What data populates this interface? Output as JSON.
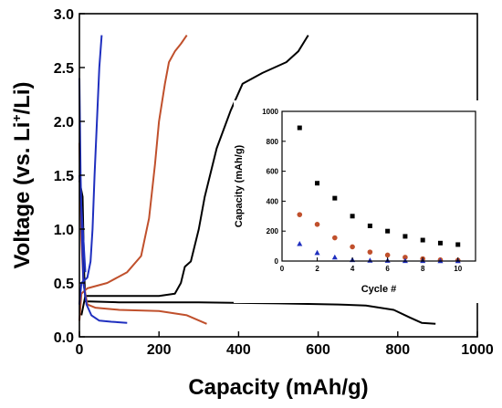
{
  "chart_data": [
    {
      "type": "line",
      "xlabel": "Capacity (mAh/g)",
      "ylabel_parts": [
        "Voltage (vs. Li",
        "+",
        "/Li)"
      ],
      "xlim": [
        0,
        1000
      ],
      "ylim": [
        0,
        3.0
      ],
      "x_ticks": [
        "0",
        "200",
        "400",
        "600",
        "800",
        "1000"
      ],
      "y_ticks": [
        "0.0",
        "0.5",
        "1.0",
        "1.5",
        "2.0",
        "2.5",
        "3.0"
      ],
      "grid": false,
      "series": [
        {
          "color": "#000000",
          "curves": [
            [
              [
                0,
                1.45
              ],
              [
                8,
                1.3
              ],
              [
                12,
                0.6
              ],
              [
                15,
                0.33
              ],
              [
                100,
                0.32
              ],
              [
                300,
                0.32
              ],
              [
                500,
                0.31
              ],
              [
                650,
                0.3
              ],
              [
                720,
                0.29
              ],
              [
                790,
                0.25
              ],
              [
                830,
                0.18
              ],
              [
                860,
                0.13
              ],
              [
                895,
                0.12
              ]
            ],
            [
              [
                5,
                0.2
              ],
              [
                15,
                0.38
              ],
              [
                100,
                0.38
              ],
              [
                200,
                0.38
              ],
              [
                240,
                0.4
              ],
              [
                255,
                0.5
              ],
              [
                265,
                0.65
              ],
              [
                280,
                0.7
              ],
              [
                300,
                1.0
              ],
              [
                315,
                1.3
              ],
              [
                345,
                1.75
              ],
              [
                380,
                2.1
              ],
              [
                410,
                2.35
              ],
              [
                460,
                2.45
              ],
              [
                520,
                2.55
              ],
              [
                550,
                2.65
              ],
              [
                575,
                2.8
              ]
            ]
          ]
        },
        {
          "color": "#c0502c",
          "curves": [
            [
              [
                0,
                1.8
              ],
              [
                5,
                0.9
              ],
              [
                10,
                0.5
              ],
              [
                20,
                0.3
              ],
              [
                40,
                0.27
              ],
              [
                100,
                0.25
              ],
              [
                200,
                0.24
              ],
              [
                270,
                0.2
              ],
              [
                320,
                0.12
              ]
            ],
            [
              [
                0,
                0.15
              ],
              [
                5,
                0.4
              ],
              [
                20,
                0.45
              ],
              [
                70,
                0.5
              ],
              [
                120,
                0.6
              ],
              [
                155,
                0.75
              ],
              [
                175,
                1.1
              ],
              [
                190,
                1.6
              ],
              [
                200,
                2.0
              ],
              [
                215,
                2.35
              ],
              [
                225,
                2.55
              ],
              [
                240,
                2.65
              ],
              [
                255,
                2.72
              ],
              [
                270,
                2.8
              ]
            ]
          ]
        },
        {
          "color": "#1f2fbf",
          "curves": [
            [
              [
                0,
                2.4
              ],
              [
                3,
                1.5
              ],
              [
                6,
                1.0
              ],
              [
                10,
                0.5
              ],
              [
                18,
                0.3
              ],
              [
                30,
                0.2
              ],
              [
                50,
                0.15
              ],
              [
                80,
                0.14
              ],
              [
                120,
                0.13
              ]
            ],
            [
              [
                0,
                0.3
              ],
              [
                5,
                0.5
              ],
              [
                20,
                0.55
              ],
              [
                28,
                0.7
              ],
              [
                33,
                1.0
              ],
              [
                38,
                1.5
              ],
              [
                44,
                2.0
              ],
              [
                50,
                2.5
              ],
              [
                56,
                2.8
              ]
            ],
            [
              [
                0,
                1.5
              ],
              [
                5,
                1.2
              ],
              [
                10,
                0.9
              ],
              [
                15,
                0.6
              ]
            ]
          ]
        }
      ]
    },
    {
      "type": "scatter",
      "xlabel": "Cycle #",
      "ylabel": "Capacity (mAh/g)",
      "xlim": [
        0,
        11
      ],
      "ylim": [
        0,
        1000
      ],
      "x_ticks": [
        "0",
        "2",
        "4",
        "6",
        "8",
        "10"
      ],
      "y_ticks": [
        "0",
        "200",
        "400",
        "600",
        "800",
        "1000"
      ],
      "series": [
        {
          "color": "#000000",
          "marker": "square",
          "x": [
            1,
            2,
            3,
            4,
            5,
            6,
            7,
            8,
            9,
            10
          ],
          "y": [
            890,
            520,
            420,
            300,
            235,
            200,
            165,
            140,
            120,
            110
          ]
        },
        {
          "color": "#c0502c",
          "marker": "circle",
          "x": [
            1,
            2,
            3,
            4,
            5,
            6,
            7,
            8,
            9,
            10
          ],
          "y": [
            310,
            245,
            155,
            95,
            60,
            40,
            25,
            15,
            8,
            5
          ]
        },
        {
          "color": "#1f2fbf",
          "marker": "triangle",
          "x": [
            1,
            2,
            3,
            4,
            5,
            6,
            7,
            8,
            9,
            10
          ],
          "y": [
            115,
            55,
            25,
            8,
            4,
            3,
            2,
            2,
            1,
            1
          ]
        }
      ]
    }
  ]
}
